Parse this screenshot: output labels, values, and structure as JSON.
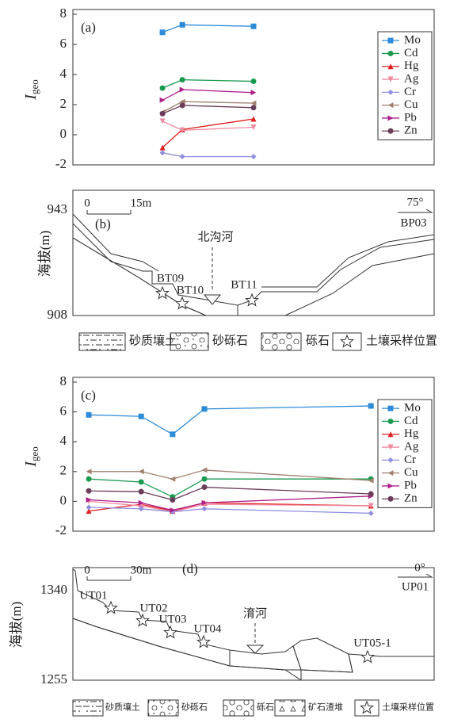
{
  "chart_data": [
    {
      "type": "line",
      "label": "(a)",
      "ylabel": "I",
      "ylabel_subscript": "geo",
      "x": [
        24.8,
        30.3,
        50
      ],
      "xlim": [
        0,
        100
      ],
      "ylim": [
        -2,
        8
      ],
      "yticks": [
        -2,
        0,
        2,
        4,
        6,
        8
      ],
      "legend": "upper right",
      "series": [
        {
          "name": "Mo",
          "color": "#2e8bd8",
          "marker": "square",
          "values": [
            6.8,
            7.3,
            7.2
          ]
        },
        {
          "name": "Cd",
          "color": "#1a9a50",
          "marker": "circle",
          "values": [
            3.1,
            3.65,
            3.55
          ]
        },
        {
          "name": "Hg",
          "color": "#e02020",
          "marker": "triangle-up",
          "values": [
            -0.85,
            0.35,
            1.05
          ]
        },
        {
          "name": "Ag",
          "color": "#f08aa0",
          "marker": "triangle-down",
          "values": [
            0.9,
            0.3,
            0.5
          ]
        },
        {
          "name": "Cr",
          "color": "#9090e0",
          "marker": "diamond",
          "values": [
            -1.2,
            -1.45,
            -1.45
          ]
        },
        {
          "name": "Cu",
          "color": "#a08070",
          "marker": "triangle-left",
          "values": [
            1.5,
            2.2,
            2.1
          ]
        },
        {
          "name": "Pb",
          "color": "#b0208a",
          "marker": "triangle-right",
          "values": [
            2.3,
            3.0,
            2.8
          ]
        },
        {
          "name": "Zn",
          "color": "#6a3d5a",
          "marker": "circle",
          "values": [
            1.4,
            1.95,
            1.8
          ]
        }
      ]
    },
    {
      "type": "line",
      "label": "(c)",
      "ylabel": "I",
      "ylabel_subscript": "geo",
      "x": [
        4.4,
        18.9,
        27.6,
        36.4,
        82.5
      ],
      "xlim": [
        0,
        100
      ],
      "ylim": [
        -2,
        8
      ],
      "yticks": [
        -2,
        0,
        2,
        4,
        6,
        8
      ],
      "legend": "upper right",
      "series": [
        {
          "name": "Mo",
          "color": "#2e8bd8",
          "marker": "square",
          "values": [
            5.8,
            5.7,
            4.5,
            6.2,
            6.4
          ]
        },
        {
          "name": "Cd",
          "color": "#1a9a50",
          "marker": "circle",
          "values": [
            1.5,
            1.3,
            0.3,
            1.5,
            1.5
          ]
        },
        {
          "name": "Hg",
          "color": "#e02020",
          "marker": "triangle-up",
          "values": [
            -0.65,
            -0.2,
            -0.65,
            -0.1,
            -0.3
          ]
        },
        {
          "name": "Ag",
          "color": "#f08aa0",
          "marker": "triangle-down",
          "values": [
            0,
            -0.3,
            -0.7,
            -0.2,
            -0.3
          ]
        },
        {
          "name": "Cr",
          "color": "#9090e0",
          "marker": "diamond",
          "values": [
            -0.4,
            -0.5,
            -0.7,
            -0.5,
            -0.8
          ]
        },
        {
          "name": "Cu",
          "color": "#a08070",
          "marker": "triangle-left",
          "values": [
            2.0,
            2.0,
            1.5,
            2.1,
            1.4
          ]
        },
        {
          "name": "Pb",
          "color": "#b0208a",
          "marker": "triangle-right",
          "values": [
            0.1,
            -0.1,
            -0.6,
            -0.1,
            0.35
          ]
        },
        {
          "name": "Zn",
          "color": "#6a3d5a",
          "marker": "circle",
          "values": [
            0.7,
            0.65,
            0.1,
            0.95,
            0.5
          ]
        }
      ]
    }
  ],
  "section_b": {
    "label": "(b)",
    "ylabel": "海拔(m)",
    "ytop": "943",
    "ybottom": "908",
    "scale_zero": "0",
    "scale_length": "15m",
    "azimuth": "75°",
    "profile": "BP03",
    "river": "北沟河",
    "samples": [
      "BT09",
      "BT10",
      "BT11"
    ],
    "legend": [
      "砂质壤土",
      "砂砾石",
      "砾石",
      "土壤采样位置"
    ]
  },
  "section_d": {
    "label": "(d)",
    "ylabel": "海拔(m)",
    "ytop": "1340",
    "ybottom": "1255",
    "scale_zero": "0",
    "scale_length": "30m",
    "azimuth": "0°",
    "profile": "UP01",
    "river": "淯河",
    "samples": [
      "UT01",
      "UT02",
      "UT03",
      "UT04",
      "UT05-1"
    ],
    "legend": [
      "砂质壤土",
      "砂砾石",
      "砾石",
      "矿石渣堆",
      "土壤采样位置"
    ]
  }
}
